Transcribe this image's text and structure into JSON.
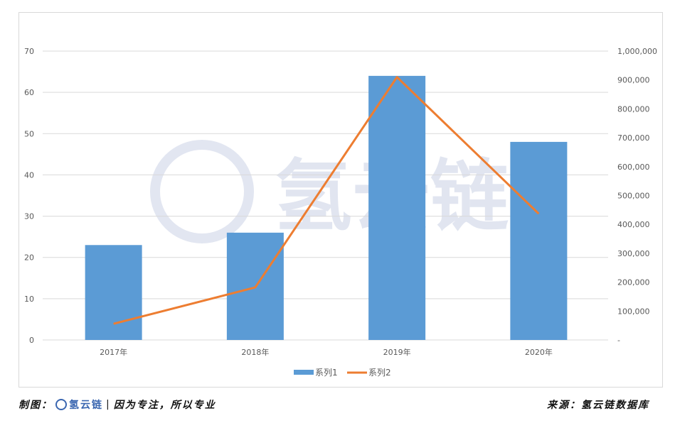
{
  "chart_data": {
    "type": "bar+line",
    "categories": [
      "2017年",
      "2018年",
      "2019年",
      "2020年"
    ],
    "series": [
      {
        "name": "系列1",
        "type": "bar",
        "axis": "left",
        "values": [
          23,
          26,
          64,
          48
        ],
        "color": "#5b9bd5"
      },
      {
        "name": "系列2",
        "type": "line",
        "axis": "right",
        "values": [
          56000,
          182000,
          910000,
          437000
        ],
        "color": "#ed7d31"
      }
    ],
    "y_left": {
      "range": [
        0,
        70
      ],
      "ticks": [
        "0",
        "10",
        "20",
        "30",
        "40",
        "50",
        "60",
        "70"
      ]
    },
    "y_right": {
      "range": [
        0,
        1000000
      ],
      "ticks": [
        "-",
        "100,000",
        "200,000",
        "300,000",
        "400,000",
        "500,000",
        "600,000",
        "700,000",
        "800,000",
        "900,000",
        "1,000,000"
      ]
    },
    "grid": true,
    "legend": "bottom",
    "watermark": "氢云链"
  },
  "footer": {
    "left_label": "制图：",
    "logo_text": "氢云链",
    "separator": "|",
    "slogan": "因为专注，所以专业",
    "right": "来源：氢云链数据库"
  }
}
